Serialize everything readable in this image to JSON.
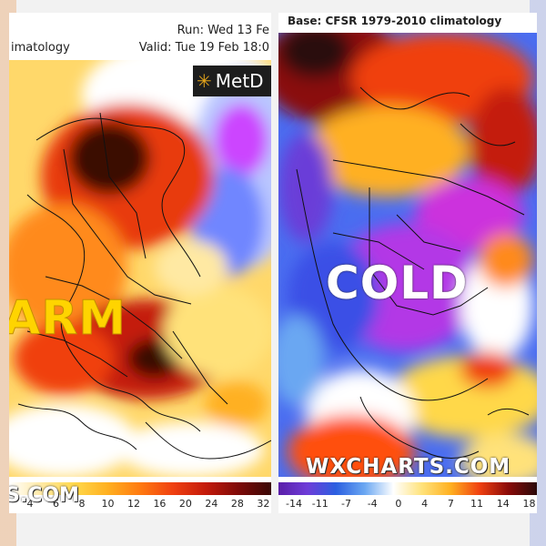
{
  "left_panel": {
    "header_line1_left": "",
    "header_run": "Run: Wed 13 Fe",
    "header_title": "imatology",
    "header_valid": "Valid: Tue 19 Feb 18:0",
    "logo_text": "MetD",
    "big_label": "ARM",
    "watermark": "S.COM",
    "colorbar_ticks": [
      "4",
      "6",
      "8",
      "10",
      "12",
      "16",
      "20",
      "24",
      "28",
      "32"
    ],
    "colors": [
      "#ffffff",
      "#ffe9a3",
      "#ffd84a",
      "#ffb020",
      "#ff7a10",
      "#f04010",
      "#c41a0a",
      "#7e0a08",
      "#3a0806"
    ]
  },
  "right_panel": {
    "header_title": "Base: CFSR 1979-2010 climatology",
    "big_label": "COLD",
    "watermark": "WXCHARTS.COM",
    "colorbar_ticks": [
      "-14",
      "-11",
      "-7",
      "-4",
      "0",
      "4",
      "7",
      "11",
      "14",
      "18"
    ],
    "colors": [
      "#5a1ea8",
      "#6e3cd8",
      "#2b5fe0",
      "#6aa7f2",
      "#ffffff",
      "#ffe27a",
      "#ffb020",
      "#f04010",
      "#8a0a08",
      "#2a0a0a"
    ]
  }
}
